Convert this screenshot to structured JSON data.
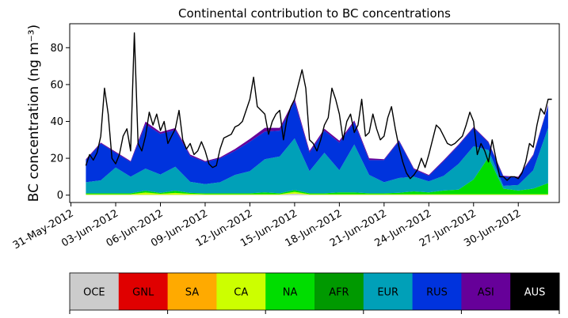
{
  "chart_data": {
    "type": "area",
    "stacked": true,
    "title": "Continental contribution to BC concentrations",
    "ylabel": "BC concentration (ng m⁻³)",
    "xlabel": "",
    "ylim": [
      -4,
      93
    ],
    "yticks": [
      0,
      20,
      40,
      60,
      80
    ],
    "xlim": [
      "2012-05-30T22:00",
      "2012-07-02T18:00"
    ],
    "xticks": [
      "2012-05-31",
      "2012-06-03",
      "2012-06-06",
      "2012-06-09",
      "2012-06-12",
      "2012-06-15",
      "2012-06-18",
      "2012-06-21",
      "2012-06-24",
      "2012-06-27",
      "2012-06-30"
    ],
    "xtick_labels": [
      "31-May-2012",
      "03-Jun-2012",
      "06-Jun-2012",
      "09-Jun-2012",
      "12-Jun-2012",
      "15-Jun-2012",
      "18-Jun-2012",
      "21-Jun-2012",
      "24-Jun-2012",
      "27-Jun-2012",
      "30-Jun-2012"
    ],
    "grid": false,
    "x": [
      "2012-06-01",
      "2012-06-02",
      "2012-06-03",
      "2012-06-04",
      "2012-06-05",
      "2012-06-06",
      "2012-06-07",
      "2012-06-08",
      "2012-06-09",
      "2012-06-10",
      "2012-06-11",
      "2012-06-12",
      "2012-06-13",
      "2012-06-14",
      "2012-06-15",
      "2012-06-16",
      "2012-06-17",
      "2012-06-18",
      "2012-06-19",
      "2012-06-20",
      "2012-06-21",
      "2012-06-22",
      "2012-06-23",
      "2012-06-24",
      "2012-06-25",
      "2012-06-26",
      "2012-06-27",
      "2012-06-28",
      "2012-06-29",
      "2012-06-30",
      "2012-07-01",
      "2012-07-02"
    ],
    "series": [
      {
        "name": "OCE",
        "color": "#cccccc",
        "values": [
          0.2,
          0.2,
          0.2,
          0.2,
          0.2,
          0.2,
          0.2,
          0.2,
          0.2,
          0.2,
          0.2,
          0.2,
          0.2,
          0.2,
          0.8,
          0.2,
          0.2,
          0.2,
          0.2,
          0.2,
          0.2,
          0.2,
          0.2,
          0.2,
          0.2,
          0.2,
          0.2,
          0.2,
          0.2,
          0.2,
          0.2,
          0.2
        ]
      },
      {
        "name": "GNL",
        "color": "#e00000",
        "values": [
          0,
          0,
          0,
          0,
          0,
          0,
          0,
          0,
          0,
          0,
          0,
          0,
          0,
          0,
          0,
          0,
          0,
          0,
          0,
          0,
          0,
          0,
          0,
          0,
          0,
          0,
          0,
          0,
          0,
          0,
          0,
          0
        ]
      },
      {
        "name": "SA",
        "color": "#ffaa00",
        "values": [
          0,
          0,
          0,
          0,
          0,
          0,
          0,
          0,
          0,
          0,
          0,
          0,
          0,
          0,
          0,
          0,
          0,
          0,
          0,
          0,
          0,
          0,
          0,
          0,
          0,
          0,
          0,
          0,
          0,
          0,
          0,
          0
        ]
      },
      {
        "name": "CA",
        "color": "#ccff00",
        "values": [
          0.3,
          0.3,
          0.3,
          0.3,
          1.2,
          0.5,
          1.0,
          0.5,
          0.3,
          0.3,
          0.3,
          0.3,
          0.3,
          0.3,
          1.0,
          0.3,
          0.3,
          0.3,
          0.3,
          0.3,
          0.3,
          0.3,
          0.3,
          0.3,
          0.3,
          0.3,
          0.3,
          0.3,
          0.3,
          0.3,
          0.3,
          0.3
        ]
      },
      {
        "name": "NA",
        "color": "#00dd00",
        "values": [
          0.5,
          0.5,
          0.5,
          0.5,
          1.0,
          0.5,
          1.2,
          0.5,
          0.5,
          0.5,
          0.5,
          0.5,
          1.0,
          0.5,
          1.0,
          0.5,
          0.5,
          1.0,
          1.0,
          0.5,
          0.5,
          0.8,
          1.5,
          1.0,
          2.0,
          2.5,
          8.0,
          20.0,
          3.0,
          2.0,
          3.0,
          6.0
        ]
      },
      {
        "name": "AFR",
        "color": "#009900",
        "values": [
          0,
          0,
          0,
          0,
          0,
          0,
          0,
          0,
          0,
          0,
          0,
          0,
          0,
          0,
          0,
          0,
          0,
          0,
          0,
          0,
          0,
          0,
          0,
          0,
          0,
          0,
          0,
          0,
          0,
          0,
          0,
          0
        ]
      },
      {
        "name": "EUR",
        "color": "#00a0b8",
        "values": [
          6,
          7,
          14,
          9,
          12,
          10,
          13,
          6,
          5,
          6,
          10,
          12,
          18,
          20,
          28,
          12,
          22,
          12,
          26,
          10,
          6,
          8,
          8,
          6,
          8,
          14,
          18,
          4,
          1.5,
          3,
          10,
          30
        ]
      },
      {
        "name": "RUS",
        "color": "#0033dd",
        "values": [
          12,
          20,
          8,
          8,
          24,
          22,
          20,
          14,
          12,
          13,
          13,
          16,
          15,
          14,
          20,
          10,
          12,
          15,
          12,
          8,
          12,
          20,
          4,
          3,
          8,
          10,
          10,
          4,
          5,
          4,
          8,
          12
        ]
      },
      {
        "name": "ASI",
        "color": "#660099",
        "values": [
          0.5,
          0.5,
          0.5,
          0.5,
          1.5,
          1.0,
          1.0,
          0.8,
          0.5,
          0.5,
          1.0,
          1.5,
          2.0,
          1.5,
          1.5,
          1.0,
          1.0,
          1.0,
          1.0,
          1.0,
          0.5,
          0.5,
          0.5,
          0.5,
          0.5,
          0.5,
          0.5,
          0.5,
          0.5,
          0.5,
          0.5,
          0.5
        ]
      },
      {
        "name": "AUS",
        "color": "#000000",
        "values": [
          0,
          0,
          0,
          0,
          0,
          0,
          0,
          0,
          0,
          0,
          0,
          0,
          0,
          0,
          0,
          0,
          0,
          0,
          0,
          0,
          0,
          0,
          0,
          0,
          0,
          0,
          0,
          0,
          0,
          0,
          0,
          0
        ]
      }
    ],
    "total": {
      "color": "#000000",
      "x": [
        "2012-06-01T00:00",
        "2012-06-01T06:00",
        "2012-06-01T12:00",
        "2012-06-01T18:00",
        "2012-06-02T00:00",
        "2012-06-02T06:00",
        "2012-06-02T12:00",
        "2012-06-02T18:00",
        "2012-06-03T00:00",
        "2012-06-03T06:00",
        "2012-06-03T12:00",
        "2012-06-03T18:00",
        "2012-06-04T00:00",
        "2012-06-04T06:00",
        "2012-06-04T12:00",
        "2012-06-04T18:00",
        "2012-06-05T00:00",
        "2012-06-05T06:00",
        "2012-06-05T12:00",
        "2012-06-05T18:00",
        "2012-06-06T00:00",
        "2012-06-06T06:00",
        "2012-06-06T12:00",
        "2012-06-06T18:00",
        "2012-06-07T00:00",
        "2012-06-07T06:00",
        "2012-06-07T12:00",
        "2012-06-07T18:00",
        "2012-06-08T00:00",
        "2012-06-08T06:00",
        "2012-06-08T12:00",
        "2012-06-08T18:00",
        "2012-06-09T00:00",
        "2012-06-09T06:00",
        "2012-06-09T12:00",
        "2012-06-09T18:00",
        "2012-06-10T00:00",
        "2012-06-10T06:00",
        "2012-06-10T12:00",
        "2012-06-10T18:00",
        "2012-06-11T00:00",
        "2012-06-11T06:00",
        "2012-06-11T12:00",
        "2012-06-11T18:00",
        "2012-06-12T00:00",
        "2012-06-12T06:00",
        "2012-06-12T12:00",
        "2012-06-12T18:00",
        "2012-06-13T00:00",
        "2012-06-13T06:00",
        "2012-06-13T12:00",
        "2012-06-13T18:00",
        "2012-06-14T00:00",
        "2012-06-14T06:00",
        "2012-06-14T12:00",
        "2012-06-14T18:00",
        "2012-06-15T00:00",
        "2012-06-15T06:00",
        "2012-06-15T12:00",
        "2012-06-15T18:00",
        "2012-06-16T00:00",
        "2012-06-16T06:00",
        "2012-06-16T12:00",
        "2012-06-16T18:00",
        "2012-06-17T00:00",
        "2012-06-17T06:00",
        "2012-06-17T12:00",
        "2012-06-17T18:00",
        "2012-06-18T00:00",
        "2012-06-18T06:00",
        "2012-06-18T12:00",
        "2012-06-18T18:00",
        "2012-06-19T00:00",
        "2012-06-19T06:00",
        "2012-06-19T12:00",
        "2012-06-19T18:00",
        "2012-06-20T00:00",
        "2012-06-20T06:00",
        "2012-06-20T12:00",
        "2012-06-20T18:00",
        "2012-06-21T00:00",
        "2012-06-21T06:00",
        "2012-06-21T12:00",
        "2012-06-21T18:00",
        "2012-06-22T00:00",
        "2012-06-22T06:00",
        "2012-06-22T12:00",
        "2012-06-22T18:00",
        "2012-06-23T00:00",
        "2012-06-23T06:00",
        "2012-06-23T12:00",
        "2012-06-23T18:00",
        "2012-06-24T00:00",
        "2012-06-24T06:00",
        "2012-06-24T12:00",
        "2012-06-24T18:00",
        "2012-06-25T00:00",
        "2012-06-25T06:00",
        "2012-06-25T12:00",
        "2012-06-25T18:00",
        "2012-06-26T00:00",
        "2012-06-26T06:00",
        "2012-06-26T12:00",
        "2012-06-26T18:00",
        "2012-06-27T00:00",
        "2012-06-27T06:00",
        "2012-06-27T12:00",
        "2012-06-27T18:00",
        "2012-06-28T00:00",
        "2012-06-28T06:00",
        "2012-06-28T12:00",
        "2012-06-28T18:00",
        "2012-06-29T00:00",
        "2012-06-29T06:00",
        "2012-06-29T12:00",
        "2012-06-29T18:00",
        "2012-06-30T00:00",
        "2012-06-30T06:00",
        "2012-06-30T12:00",
        "2012-06-30T18:00",
        "2012-07-01T00:00",
        "2012-07-01T06:00",
        "2012-07-01T12:00",
        "2012-07-01T18:00",
        "2012-07-02T00:00",
        "2012-07-02T06:00"
      ],
      "values": [
        16,
        22,
        19,
        23,
        32,
        58,
        44,
        20,
        17,
        22,
        32,
        36,
        24,
        88,
        28,
        24,
        32,
        45,
        38,
        44,
        35,
        40,
        28,
        32,
        36,
        46,
        30,
        25,
        28,
        22,
        24,
        29,
        24,
        17,
        15,
        16,
        25,
        31,
        32,
        33,
        37,
        38,
        40,
        46,
        52,
        64,
        48,
        46,
        44,
        33,
        40,
        44,
        46,
        30,
        42,
        48,
        52,
        60,
        68,
        58,
        30,
        28,
        24,
        30,
        38,
        42,
        58,
        52,
        44,
        30,
        40,
        44,
        34,
        38,
        52,
        32,
        34,
        44,
        36,
        30,
        32,
        42,
        48,
        36,
        26,
        18,
        12,
        9,
        11,
        14,
        20,
        15,
        22,
        30,
        38,
        36,
        32,
        28,
        27,
        28,
        30,
        32,
        38,
        45,
        40,
        22,
        28,
        24,
        18,
        30,
        20,
        10,
        10,
        8,
        10,
        10,
        9,
        12,
        18,
        28,
        26,
        38,
        47,
        44,
        52,
        52
      ]
    },
    "legend": {
      "placement": "bottom",
      "entries": [
        {
          "label": "OCE",
          "color": "#cccccc",
          "text_color": "#000000"
        },
        {
          "label": "GNL",
          "color": "#e00000",
          "text_color": "#000000"
        },
        {
          "label": "SA",
          "color": "#ffaa00",
          "text_color": "#000000"
        },
        {
          "label": "CA",
          "color": "#ccff00",
          "text_color": "#000000"
        },
        {
          "label": "NA",
          "color": "#00dd00",
          "text_color": "#000000"
        },
        {
          "label": "AFR",
          "color": "#009900",
          "text_color": "#000000"
        },
        {
          "label": "EUR",
          "color": "#00a0b8",
          "text_color": "#000000"
        },
        {
          "label": "RUS",
          "color": "#0033dd",
          "text_color": "#000000"
        },
        {
          "label": "ASI",
          "color": "#660099",
          "text_color": "#000000"
        },
        {
          "label": "AUS",
          "color": "#000000",
          "text_color": "#ffffff"
        }
      ]
    }
  }
}
